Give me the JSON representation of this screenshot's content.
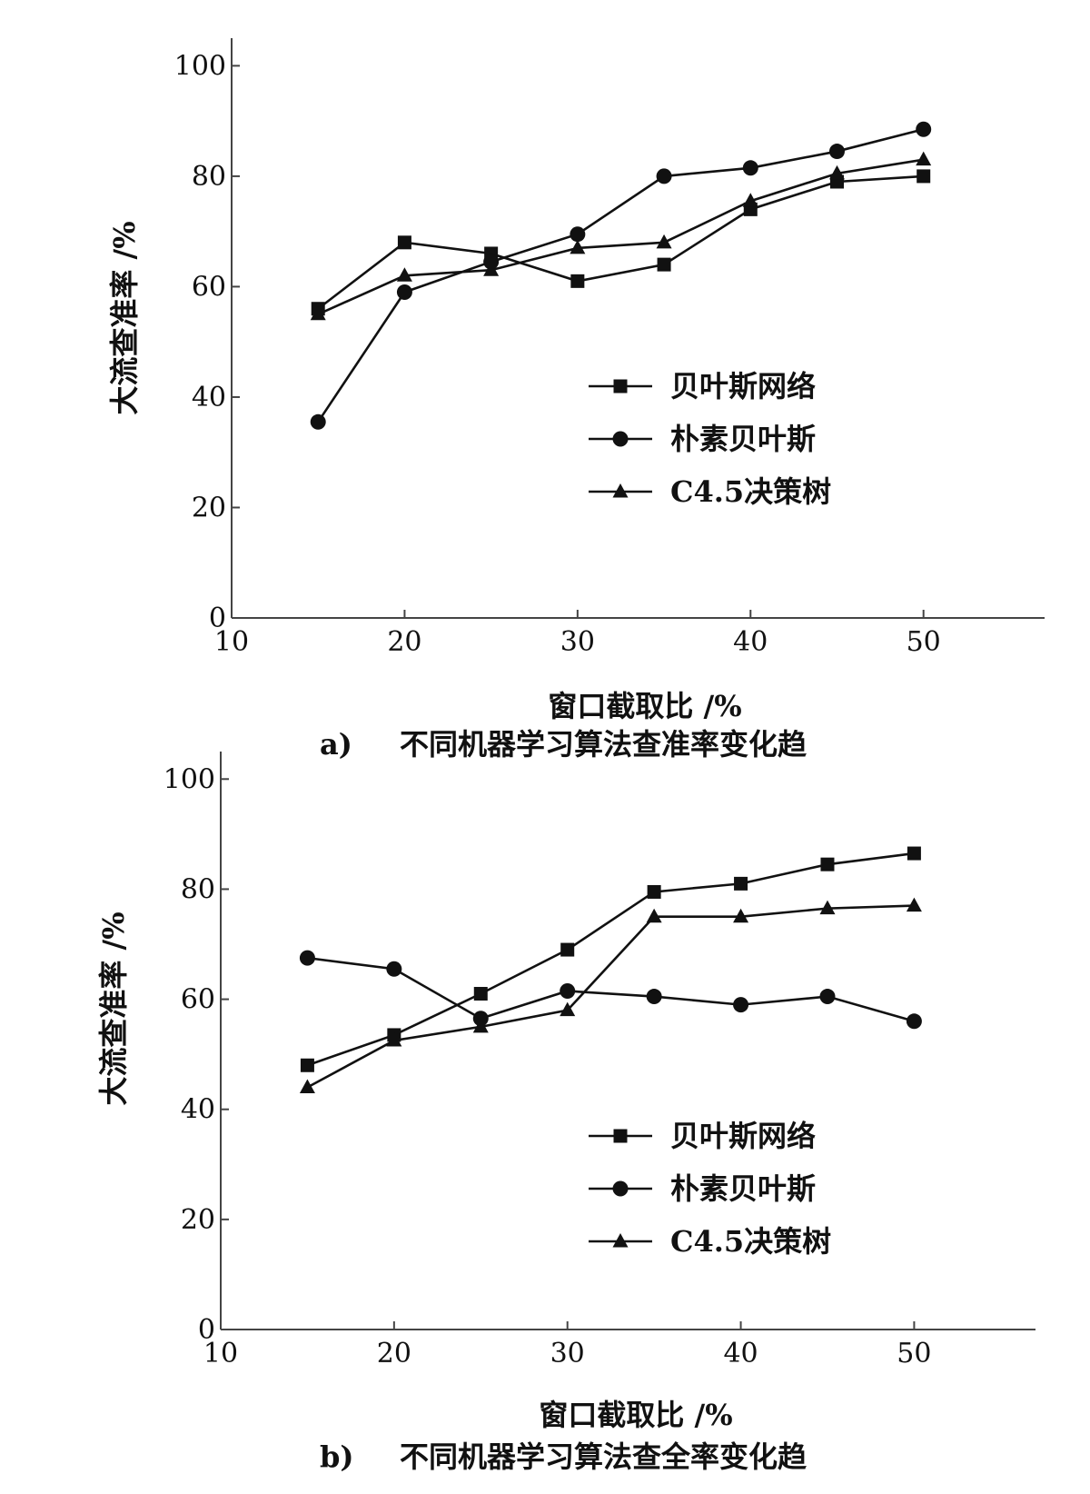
{
  "chart_data": [
    {
      "type": "line",
      "panel": "a)",
      "caption_label": "a)",
      "caption_text": "不同机器学习算法查准率变化趋",
      "xlabel": "窗口截取比 /%",
      "ylabel": "大流查准率 /%",
      "xlim": [
        10,
        57
      ],
      "ylim": [
        0,
        105
      ],
      "xticks": [
        10,
        20,
        30,
        40,
        50
      ],
      "yticks": [
        0,
        20,
        40,
        60,
        80,
        100
      ],
      "legend_position": "center-right",
      "series": [
        {
          "name": "贝叶斯网络",
          "marker": "square",
          "x": [
            15,
            20,
            25,
            30,
            35,
            40,
            45,
            50
          ],
          "y": [
            56,
            68,
            66,
            61,
            64,
            74,
            79,
            80
          ]
        },
        {
          "name": "朴素贝叶斯",
          "marker": "circle",
          "x": [
            15,
            20,
            25,
            30,
            35,
            40,
            45,
            50
          ],
          "y": [
            35.5,
            59,
            64.5,
            69.5,
            80,
            81.5,
            84.5,
            88.5
          ]
        },
        {
          "name": "C4.5决策树",
          "marker": "triangle",
          "x": [
            15,
            20,
            25,
            30,
            35,
            40,
            45,
            50
          ],
          "y": [
            55,
            62,
            63,
            67,
            68,
            75.5,
            80.5,
            83
          ]
        }
      ]
    },
    {
      "type": "line",
      "panel": "b)",
      "caption_label": "b)",
      "caption_text": "不同机器学习算法查全率变化趋",
      "xlabel": "窗口截取比 /%",
      "ylabel": "大流查准率 /%",
      "xlim": [
        10,
        57
      ],
      "ylim": [
        0,
        105
      ],
      "xticks": [
        10,
        20,
        30,
        40,
        50
      ],
      "yticks": [
        0,
        20,
        40,
        60,
        80,
        100
      ],
      "legend_position": "center-right",
      "series": [
        {
          "name": "贝叶斯网络",
          "marker": "square",
          "x": [
            15,
            20,
            25,
            30,
            35,
            40,
            45,
            50
          ],
          "y": [
            48,
            53.5,
            61,
            69,
            79.5,
            81,
            84.5,
            86.5
          ]
        },
        {
          "name": "朴素贝叶斯",
          "marker": "circle",
          "x": [
            15,
            20,
            25,
            30,
            35,
            40,
            45,
            50
          ],
          "y": [
            67.5,
            65.5,
            56.5,
            61.5,
            60.5,
            59,
            60.5,
            56
          ]
        },
        {
          "name": "C4.5决策树",
          "marker": "triangle",
          "x": [
            15,
            20,
            25,
            30,
            35,
            40,
            45,
            50
          ],
          "y": [
            44,
            52.5,
            55,
            58,
            75,
            75,
            76.5,
            77
          ]
        }
      ]
    }
  ]
}
